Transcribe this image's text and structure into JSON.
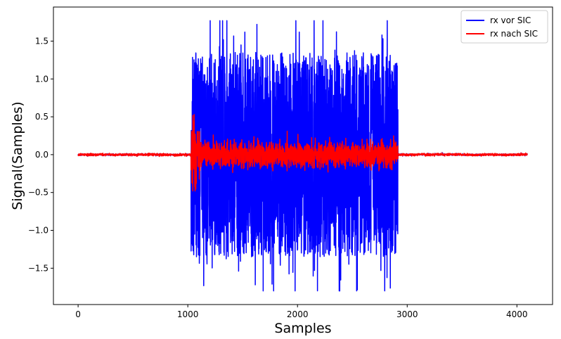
{
  "chart_data": {
    "type": "line",
    "title": "",
    "xlabel": "Samples",
    "ylabel": "Signal(Samples)",
    "xlim": [
      -225,
      4325
    ],
    "ylim": [
      -1.98,
      1.95
    ],
    "x_ticks": [
      0,
      1000,
      2000,
      3000,
      4000
    ],
    "y_ticks": [
      -1.5,
      -1.0,
      -0.5,
      0.0,
      0.5,
      1.0,
      1.5
    ],
    "y_tick_labels": [
      "−1.5",
      "−1.0",
      "−0.5",
      "0.0",
      "0.5",
      "1.0",
      "1.5"
    ],
    "grid": false,
    "legend_position": "top-right",
    "total_samples": 4096,
    "burst_start": 1030,
    "burst_end": 2915,
    "series": [
      {
        "name": "rx vor SIC",
        "color": "#0000ff",
        "description": "burst with peaks approx. ±1.8 between samples 1030 and 2915, near 0 elsewhere",
        "peak_max": 1.77,
        "peak_min": -1.8,
        "noise_level_outside_burst": 0.01
      },
      {
        "name": "rx nach SIC",
        "color": "#ff0000",
        "description": "residual signal after SIC, approx. ±0.15 in burst, up to 0.5 around sample 1070",
        "peak_max": 0.53,
        "peak_min": -0.48,
        "noise_level_outside_burst": 0.01
      }
    ]
  }
}
